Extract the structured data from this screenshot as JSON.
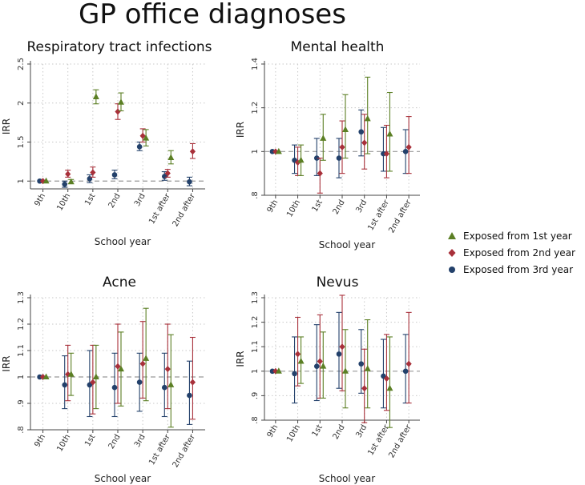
{
  "title": "GP office diagnoses",
  "colors": {
    "s1": "#5b7f24",
    "s2": "#a8303a",
    "s3": "#23416b"
  },
  "legend": [
    {
      "label": "Exposed from 1st year",
      "color": "#5b7f24",
      "shape": "triangle"
    },
    {
      "label": "Exposed from 2nd year",
      "color": "#a8303a",
      "shape": "diamond"
    },
    {
      "label": "Exposed from 3rd year",
      "color": "#23416b",
      "shape": "circle"
    }
  ],
  "chart_data": [
    {
      "type": "scatter",
      "title": "Respiratory tract infections",
      "xlabel": "School year",
      "ylabel": "IRR",
      "categories": [
        "9th",
        "10th",
        "1st",
        "2nd",
        "3rd",
        "1st after",
        "2nd after"
      ],
      "ylim": [
        0.9,
        2.5
      ],
      "yticks": [
        {
          "v": 1,
          "label": "1"
        },
        {
          "v": 1.5,
          "label": "1.5"
        },
        {
          "v": 2,
          "label": "2"
        },
        {
          "v": 2.5,
          "label": "2.5"
        }
      ],
      "series": [
        {
          "name": "Exposed from 1st year",
          "values": [
            1.0,
            0.99,
            2.08,
            2.01,
            1.55,
            1.3,
            null
          ],
          "lower": [
            1.0,
            0.97,
            1.99,
            1.9,
            1.45,
            1.22,
            null
          ],
          "upper": [
            1.0,
            1.02,
            2.17,
            2.13,
            1.66,
            1.39,
            null
          ]
        },
        {
          "name": "Exposed from 2nd year",
          "values": [
            1.0,
            1.09,
            1.11,
            1.89,
            1.58,
            1.1,
            1.38
          ],
          "lower": [
            1.0,
            1.05,
            1.05,
            1.79,
            1.5,
            1.05,
            1.29
          ],
          "upper": [
            1.0,
            1.14,
            1.18,
            1.99,
            1.67,
            1.15,
            1.48
          ]
        },
        {
          "name": "Exposed from 3rd year",
          "values": [
            1.0,
            0.96,
            1.03,
            1.08,
            1.44,
            1.06,
            0.99
          ],
          "lower": [
            1.0,
            0.92,
            0.98,
            1.03,
            1.39,
            1.01,
            0.94
          ],
          "upper": [
            1.0,
            1.0,
            1.08,
            1.14,
            1.5,
            1.12,
            1.05
          ]
        }
      ]
    },
    {
      "type": "scatter",
      "title": "Mental health",
      "xlabel": "School year",
      "ylabel": "IRR",
      "categories": [
        "9th",
        "10th",
        "1st",
        "2nd",
        "3rd",
        "1st after",
        "2nd after"
      ],
      "ylim": [
        0.8,
        1.4
      ],
      "yticks": [
        {
          "v": 0.8,
          "label": ".8"
        },
        {
          "v": 1,
          "label": "1"
        },
        {
          "v": 1.2,
          "label": "1.2"
        },
        {
          "v": 1.4,
          "label": "1.4"
        }
      ],
      "series": [
        {
          "name": "Exposed from 1st year",
          "values": [
            1.0,
            0.96,
            1.06,
            1.1,
            1.15,
            1.08,
            null
          ],
          "lower": [
            1.0,
            0.89,
            0.96,
            0.97,
            0.99,
            0.91,
            null
          ],
          "upper": [
            1.0,
            1.03,
            1.17,
            1.26,
            1.34,
            1.27,
            null
          ]
        },
        {
          "name": "Exposed from 2nd year",
          "values": [
            1.0,
            0.95,
            0.9,
            1.02,
            1.04,
            0.99,
            1.02
          ],
          "lower": [
            1.0,
            0.89,
            0.81,
            0.9,
            0.92,
            0.88,
            0.9
          ],
          "upper": [
            1.0,
            1.02,
            0.97,
            1.14,
            1.17,
            1.12,
            1.16
          ]
        },
        {
          "name": "Exposed from 3rd year",
          "values": [
            1.0,
            0.96,
            0.97,
            0.97,
            1.09,
            0.99,
            1.0
          ],
          "lower": [
            1.0,
            0.9,
            0.89,
            0.88,
            0.98,
            0.91,
            0.9
          ],
          "upper": [
            1.0,
            1.03,
            1.06,
            1.06,
            1.19,
            1.11,
            1.1
          ]
        }
      ]
    },
    {
      "type": "scatter",
      "title": "Acne",
      "xlabel": "School year",
      "ylabel": "IRR",
      "categories": [
        "9th",
        "10th",
        "1st",
        "2nd",
        "3rd",
        "1st after",
        "2nd after"
      ],
      "ylim": [
        0.8,
        1.3
      ],
      "yticks": [
        {
          "v": 0.8,
          "label": ".8"
        },
        {
          "v": 0.9,
          "label": ".9"
        },
        {
          "v": 1,
          "label": "1"
        },
        {
          "v": 1.1,
          "label": "1.1"
        },
        {
          "v": 1.2,
          "label": "1.2"
        },
        {
          "v": 1.3,
          "label": "1.3"
        }
      ],
      "series": [
        {
          "name": "Exposed from 1st year",
          "values": [
            1.0,
            1.01,
            1.0,
            1.03,
            1.07,
            0.97,
            null
          ],
          "lower": [
            1.0,
            0.93,
            0.88,
            0.89,
            0.91,
            0.81,
            null
          ],
          "upper": [
            1.0,
            1.09,
            1.12,
            1.17,
            1.26,
            1.16,
            null
          ]
        },
        {
          "name": "Exposed from 2nd year",
          "values": [
            1.0,
            1.01,
            0.98,
            1.04,
            1.05,
            1.03,
            0.98
          ],
          "lower": [
            1.0,
            0.91,
            0.86,
            0.9,
            0.92,
            0.88,
            0.84
          ],
          "upper": [
            1.0,
            1.12,
            1.12,
            1.2,
            1.21,
            1.2,
            1.15
          ]
        },
        {
          "name": "Exposed from 3rd year",
          "values": [
            1.0,
            0.97,
            0.97,
            0.96,
            0.98,
            0.96,
            0.93
          ],
          "lower": [
            1.0,
            0.88,
            0.85,
            0.85,
            0.87,
            0.85,
            0.82
          ],
          "upper": [
            1.0,
            1.08,
            1.1,
            1.09,
            1.09,
            1.09,
            1.06
          ]
        }
      ]
    },
    {
      "type": "scatter",
      "title": "Nevus",
      "xlabel": "School year",
      "ylabel": "IRR",
      "categories": [
        "9th",
        "10th",
        "1st",
        "2nd",
        "3rd",
        "1st after",
        "2nd after"
      ],
      "ylim": [
        0.8,
        1.3
      ],
      "yticks": [
        {
          "v": 0.8,
          "label": ".8"
        },
        {
          "v": 0.9,
          "label": ".9"
        },
        {
          "v": 1,
          "label": "1"
        },
        {
          "v": 1.1,
          "label": "1.1"
        },
        {
          "v": 1.2,
          "label": "1.2"
        },
        {
          "v": 1.3,
          "label": "1.3"
        }
      ],
      "series": [
        {
          "name": "Exposed from 1st year",
          "values": [
            1.0,
            1.04,
            1.02,
            1.0,
            1.01,
            0.93,
            null
          ],
          "lower": [
            1.0,
            0.95,
            0.89,
            0.85,
            0.85,
            0.77,
            null
          ],
          "upper": [
            1.0,
            1.14,
            1.16,
            1.17,
            1.21,
            1.14,
            null
          ]
        },
        {
          "name": "Exposed from 2nd year",
          "values": [
            1.0,
            1.07,
            1.04,
            1.1,
            0.93,
            0.97,
            1.03
          ],
          "lower": [
            1.0,
            0.94,
            0.89,
            0.92,
            0.79,
            0.84,
            0.87
          ],
          "upper": [
            1.0,
            1.22,
            1.23,
            1.31,
            1.09,
            1.15,
            1.24
          ]
        },
        {
          "name": "Exposed from 3rd year",
          "values": [
            1.0,
            0.99,
            1.02,
            1.07,
            1.03,
            0.98,
            1.0
          ],
          "lower": [
            1.0,
            0.87,
            0.88,
            0.93,
            0.91,
            0.85,
            0.87
          ],
          "upper": [
            1.0,
            1.14,
            1.19,
            1.24,
            1.17,
            1.13,
            1.15
          ]
        }
      ]
    }
  ]
}
